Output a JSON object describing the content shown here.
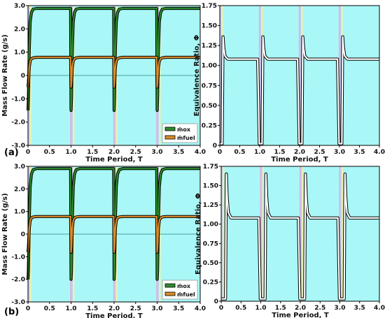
{
  "panel_labels": [
    "(a)",
    "(b)"
  ],
  "colors": {
    "background": "#a9f7f7",
    "pulse_bands": [
      "#e9a6df",
      "#c9c2ea",
      "#f4f2a6"
    ],
    "mox": "#2e8b2e",
    "fuel": "#d98b2b",
    "phi": "#ffffff",
    "outline": "#000000",
    "zero_line": "#4aa3a3"
  },
  "chart_data": [
    {
      "id": "a-mass",
      "type": "line",
      "xlabel": "Time Period, T",
      "ylabel": "Mass Flow Rate (g/s)",
      "xlim": [
        0,
        4.0
      ],
      "ylim": [
        -3.0,
        3.0
      ],
      "xticks": [
        "0",
        "0.5",
        "1.0",
        "1.5",
        "2.0",
        "2.5",
        "3.0",
        "3.5",
        "4.0"
      ],
      "yticks": [
        "-3.0",
        "-2.0",
        "-1.0",
        "0",
        "1.0",
        "2.0",
        "3.0"
      ],
      "legend": {
        "position": "bottom-right",
        "entries": [
          "ṁox",
          "ṁfuel"
        ]
      },
      "series": [
        {
          "name": "ṁox",
          "role": "mox",
          "x": [
            0,
            0.01,
            0.03,
            0.05,
            0.08,
            0.12,
            0.2,
            0.5,
            0.99,
            1.0,
            1.01,
            1.03,
            1.05,
            1.08,
            1.12,
            1.2,
            1.5,
            1.99,
            2.0,
            2.01,
            2.03,
            2.05,
            2.08,
            2.12,
            2.2,
            2.5,
            2.99,
            3.0,
            3.01,
            3.03,
            3.05,
            3.08,
            3.12,
            3.2,
            3.5,
            4.0
          ],
          "y": [
            -1.5,
            -1.0,
            1.1,
            2.3,
            2.7,
            2.85,
            2.88,
            2.88,
            2.88,
            -1.5,
            -1.0,
            1.1,
            2.3,
            2.7,
            2.85,
            2.88,
            2.88,
            2.88,
            -1.5,
            -1.0,
            1.1,
            2.3,
            2.7,
            2.85,
            2.88,
            2.88,
            2.88,
            -1.5,
            -1.0,
            1.1,
            2.3,
            2.7,
            2.85,
            2.88,
            2.88,
            2.88
          ]
        },
        {
          "name": "ṁfuel",
          "role": "fuel",
          "x": [
            0,
            0.01,
            0.03,
            0.05,
            0.08,
            0.12,
            0.2,
            0.5,
            0.99,
            1.0,
            1.01,
            1.03,
            1.05,
            1.08,
            1.12,
            1.2,
            1.5,
            1.99,
            2.0,
            2.01,
            2.03,
            2.05,
            2.08,
            2.12,
            2.2,
            2.5,
            2.99,
            3.0,
            3.01,
            3.03,
            3.05,
            3.08,
            3.12,
            3.2,
            3.5,
            4.0
          ],
          "y": [
            -0.5,
            -0.3,
            0.35,
            0.62,
            0.72,
            0.76,
            0.78,
            0.78,
            0.78,
            -0.5,
            -0.3,
            0.35,
            0.62,
            0.72,
            0.76,
            0.78,
            0.78,
            0.78,
            -0.5,
            -0.3,
            0.35,
            0.62,
            0.72,
            0.76,
            0.78,
            0.78,
            0.78,
            -0.5,
            -0.3,
            0.35,
            0.62,
            0.72,
            0.76,
            0.78,
            0.78,
            0.78
          ]
        }
      ]
    },
    {
      "id": "a-phi",
      "type": "line",
      "xlabel": "Time Period, T",
      "ylabel": "Equivalence Ratio, Φ",
      "xlim": [
        0,
        4.0
      ],
      "ylim": [
        0,
        1.75
      ],
      "xticks": [
        "0",
        "0.5",
        "1.0",
        "1.5",
        "2.0",
        "2.5",
        "3.0",
        "3.5",
        "4.0"
      ],
      "yticks": [
        "0",
        "0.25",
        "0.50",
        "0.75",
        "1.00",
        "1.25",
        "1.50",
        "1.75"
      ],
      "series": [
        {
          "name": "",
          "role": "phi",
          "x": [
            0,
            0.01,
            0.04,
            0.06,
            0.08,
            0.1,
            0.13,
            0.2,
            0.5,
            0.95,
            0.99,
            1.0,
            1.01,
            1.04,
            1.06,
            1.08,
            1.1,
            1.13,
            1.2,
            1.5,
            1.95,
            1.99,
            2.0,
            2.01,
            2.04,
            2.06,
            2.08,
            2.1,
            2.13,
            2.2,
            2.5,
            2.95,
            2.99,
            3.0,
            3.01,
            3.04,
            3.06,
            3.08,
            3.1,
            3.13,
            3.2,
            3.5,
            4.0
          ],
          "y": [
            0.02,
            0.02,
            0.02,
            0.02,
            1.36,
            1.22,
            1.12,
            1.08,
            1.08,
            1.08,
            0.02,
            0.02,
            0.02,
            0.02,
            0.02,
            1.36,
            1.22,
            1.12,
            1.08,
            1.08,
            1.08,
            0.02,
            0.02,
            0.02,
            0.02,
            0.02,
            1.36,
            1.22,
            1.12,
            1.08,
            1.08,
            1.08,
            0.02,
            0.02,
            0.02,
            0.02,
            0.02,
            1.36,
            1.22,
            1.12,
            1.08,
            1.08,
            1.08
          ]
        }
      ]
    },
    {
      "id": "b-mass",
      "type": "line",
      "xlabel": "Time Period, T",
      "ylabel": "Mass Flow Rate (g/s)",
      "xlim": [
        0,
        4.0
      ],
      "ylim": [
        -3.0,
        3.0
      ],
      "xticks": [
        "0",
        "0.5",
        "1.0",
        "1.5",
        "2.0",
        "2.5",
        "3.0",
        "3.5",
        "4.0"
      ],
      "yticks": [
        "-3.0",
        "-2.0",
        "-1.0",
        "0",
        "1.0",
        "2.0",
        "3.0"
      ],
      "legend": {
        "position": "bottom-right",
        "entries": [
          "ṁox",
          "ṁfuel"
        ]
      },
      "series": [
        {
          "name": "ṁox",
          "role": "mox",
          "x": [
            0,
            0.01,
            0.03,
            0.05,
            0.08,
            0.12,
            0.2,
            0.5,
            0.99,
            1.0,
            1.01,
            1.03,
            1.05,
            1.08,
            1.12,
            1.2,
            1.5,
            1.99,
            2.0,
            2.01,
            2.03,
            2.05,
            2.08,
            2.12,
            2.2,
            2.5,
            2.99,
            3.0,
            3.01,
            3.03,
            3.05,
            3.08,
            3.12,
            3.2,
            3.5,
            4.0
          ],
          "y": [
            -2.0,
            -1.6,
            0.6,
            2.1,
            2.65,
            2.85,
            2.9,
            2.9,
            2.9,
            -2.0,
            -1.6,
            0.6,
            2.1,
            2.65,
            2.85,
            2.9,
            2.9,
            2.9,
            -2.0,
            -1.6,
            0.6,
            2.1,
            2.65,
            2.85,
            2.9,
            2.9,
            2.9,
            -2.0,
            -1.6,
            0.6,
            2.1,
            2.65,
            2.85,
            2.9,
            2.9,
            2.9
          ]
        },
        {
          "name": "ṁfuel",
          "role": "fuel",
          "x": [
            0,
            0.01,
            0.03,
            0.05,
            0.08,
            0.12,
            0.2,
            0.5,
            0.99,
            1.0,
            1.01,
            1.03,
            1.05,
            1.08,
            1.12,
            1.2,
            1.5,
            1.99,
            2.0,
            2.01,
            2.03,
            2.05,
            2.08,
            2.12,
            2.2,
            2.5,
            2.99,
            3.0,
            3.01,
            3.03,
            3.05,
            3.08,
            3.12,
            3.2,
            3.5,
            4.0
          ],
          "y": [
            -0.8,
            -0.6,
            0.25,
            0.6,
            0.72,
            0.76,
            0.78,
            0.78,
            0.78,
            -0.8,
            -0.6,
            0.25,
            0.6,
            0.72,
            0.76,
            0.78,
            0.78,
            0.78,
            -0.8,
            -0.6,
            0.25,
            0.6,
            0.72,
            0.76,
            0.78,
            0.78,
            0.78,
            -0.8,
            -0.6,
            0.25,
            0.6,
            0.72,
            0.76,
            0.78,
            0.78,
            0.78
          ]
        }
      ]
    },
    {
      "id": "b-phi",
      "type": "line",
      "xlabel": "Time Period, T",
      "ylabel": "Equivalence Ratio, Φ",
      "xlim": [
        0,
        4.0
      ],
      "ylim": [
        0,
        1.75
      ],
      "xticks": [
        "0",
        "0.5",
        "1.0",
        "1.5",
        "2.0",
        "2.5",
        "3.0",
        "3.5",
        "4.0"
      ],
      "yticks": [
        "0",
        "0.25",
        "0.50",
        "0.75",
        "1.00",
        "1.25",
        "1.50",
        "1.75"
      ],
      "series": [
        {
          "name": "",
          "role": "phi",
          "x": [
            0,
            0.01,
            0.09,
            0.11,
            0.13,
            0.15,
            0.18,
            0.25,
            0.5,
            0.95,
            0.99,
            1.0,
            1.01,
            1.09,
            1.11,
            1.13,
            1.15,
            1.18,
            1.25,
            1.5,
            1.95,
            1.99,
            2.0,
            2.01,
            2.09,
            2.11,
            2.13,
            2.15,
            2.18,
            2.25,
            2.5,
            2.95,
            2.99,
            3.0,
            3.01,
            3.09,
            3.11,
            3.13,
            3.15,
            3.18,
            3.25,
            3.5,
            4.0
          ],
          "y": [
            0.03,
            0.03,
            0.03,
            0.03,
            1.65,
            1.35,
            1.15,
            1.08,
            1.08,
            1.08,
            0.03,
            0.03,
            0.03,
            0.03,
            0.03,
            1.65,
            1.35,
            1.15,
            1.08,
            1.08,
            1.08,
            0.03,
            0.03,
            0.03,
            0.03,
            0.03,
            1.65,
            1.35,
            1.15,
            1.08,
            1.08,
            1.08,
            0.03,
            0.03,
            0.03,
            0.03,
            0.03,
            1.65,
            1.35,
            1.15,
            1.08,
            1.08,
            1.08
          ]
        }
      ]
    }
  ]
}
